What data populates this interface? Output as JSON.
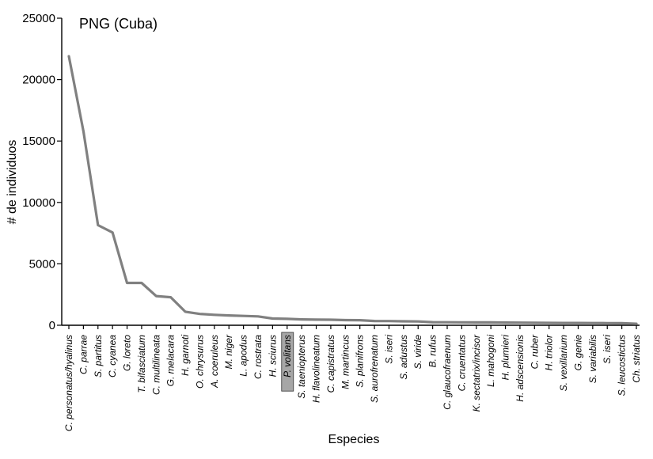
{
  "chart_data": {
    "type": "line",
    "title": "PNG (Cuba)",
    "xlabel": "Especies",
    "ylabel": "# de individuos",
    "ylim": [
      0,
      25000
    ],
    "yticks": [
      0,
      5000,
      10000,
      15000,
      20000,
      25000
    ],
    "grid": false,
    "highlighted_category": "P. volitans",
    "series_color": "#808080",
    "highlight_color": "#a6a6a6",
    "categories": [
      "C. personatus/hyalinus",
      "C. parrae",
      "S. partitus",
      "C. cyanea",
      "G. loreto",
      "T. bifasciatum",
      "C. multilineata",
      "G. melacara",
      "H. garnoti",
      "O. chrysurus",
      "A. coeruleus",
      "M. niger",
      "L. apodus",
      "C. rostrata",
      "H. sciurus",
      "P. volitans",
      "S. taeniopterus",
      "H. flavolineatum",
      "C. capistratus",
      "M. martincus",
      "S. planifrons",
      "S. aurofrenatum",
      "S. iseri",
      "S. adustus",
      "S. viride",
      "B. rufus",
      "C. glaucofraenum",
      "C. cruentatus",
      "K. sectatrix/incisor",
      "L. mahogoni",
      "H. plumieri",
      "H. adscensionis",
      "C. ruber",
      "H. triolor",
      "S. vexillarium",
      "G. genie",
      "S. variabilis",
      "S. iseri",
      "S. leucostictus",
      "Ch. striatus"
    ],
    "series": [
      {
        "values": [
          21900,
          15800,
          8150,
          7550,
          3450,
          3450,
          2380,
          2280,
          1100,
          920,
          850,
          800,
          760,
          720,
          550,
          520,
          480,
          460,
          450,
          420,
          410,
          350,
          340,
          320,
          310,
          250,
          245,
          240,
          235,
          230,
          220,
          210,
          200,
          195,
          190,
          185,
          180,
          175,
          170,
          120
        ]
      }
    ]
  }
}
